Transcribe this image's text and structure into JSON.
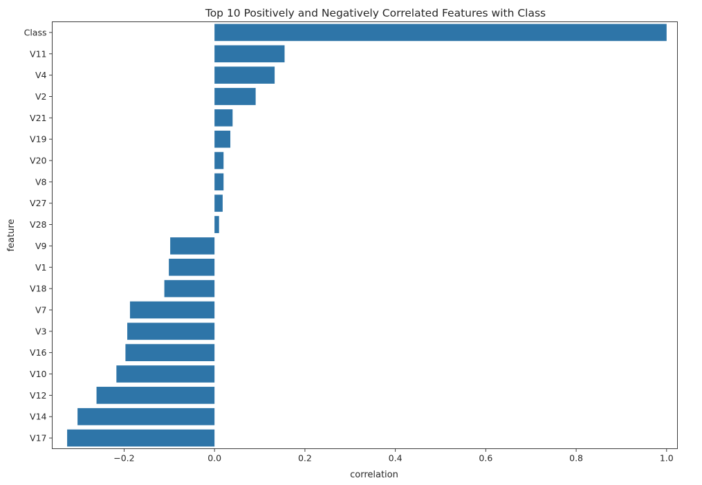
{
  "chart_data": {
    "type": "bar",
    "orientation": "horizontal",
    "title": "Top 10 Positively and Negatively Correlated Features with Class",
    "xlabel": "correlation",
    "ylabel": "feature",
    "xlim": [
      -0.359,
      1.024
    ],
    "xticks": [
      -0.2,
      0.0,
      0.2,
      0.4,
      0.6,
      0.8,
      1.0
    ],
    "xtick_labels": [
      "−0.2",
      "0.0",
      "0.2",
      "0.4",
      "0.6",
      "0.8",
      "1.0"
    ],
    "grid": false,
    "bar_color": "#2e75a8",
    "categories": [
      "Class",
      "V11",
      "V4",
      "V2",
      "V21",
      "V19",
      "V20",
      "V8",
      "V27",
      "V28",
      "V9",
      "V1",
      "V18",
      "V7",
      "V3",
      "V16",
      "V10",
      "V12",
      "V14",
      "V17"
    ],
    "values": [
      1.0,
      0.155,
      0.133,
      0.091,
      0.04,
      0.035,
      0.02,
      0.02,
      0.018,
      0.01,
      -0.098,
      -0.101,
      -0.111,
      -0.187,
      -0.193,
      -0.197,
      -0.217,
      -0.261,
      -0.303,
      -0.326
    ]
  }
}
